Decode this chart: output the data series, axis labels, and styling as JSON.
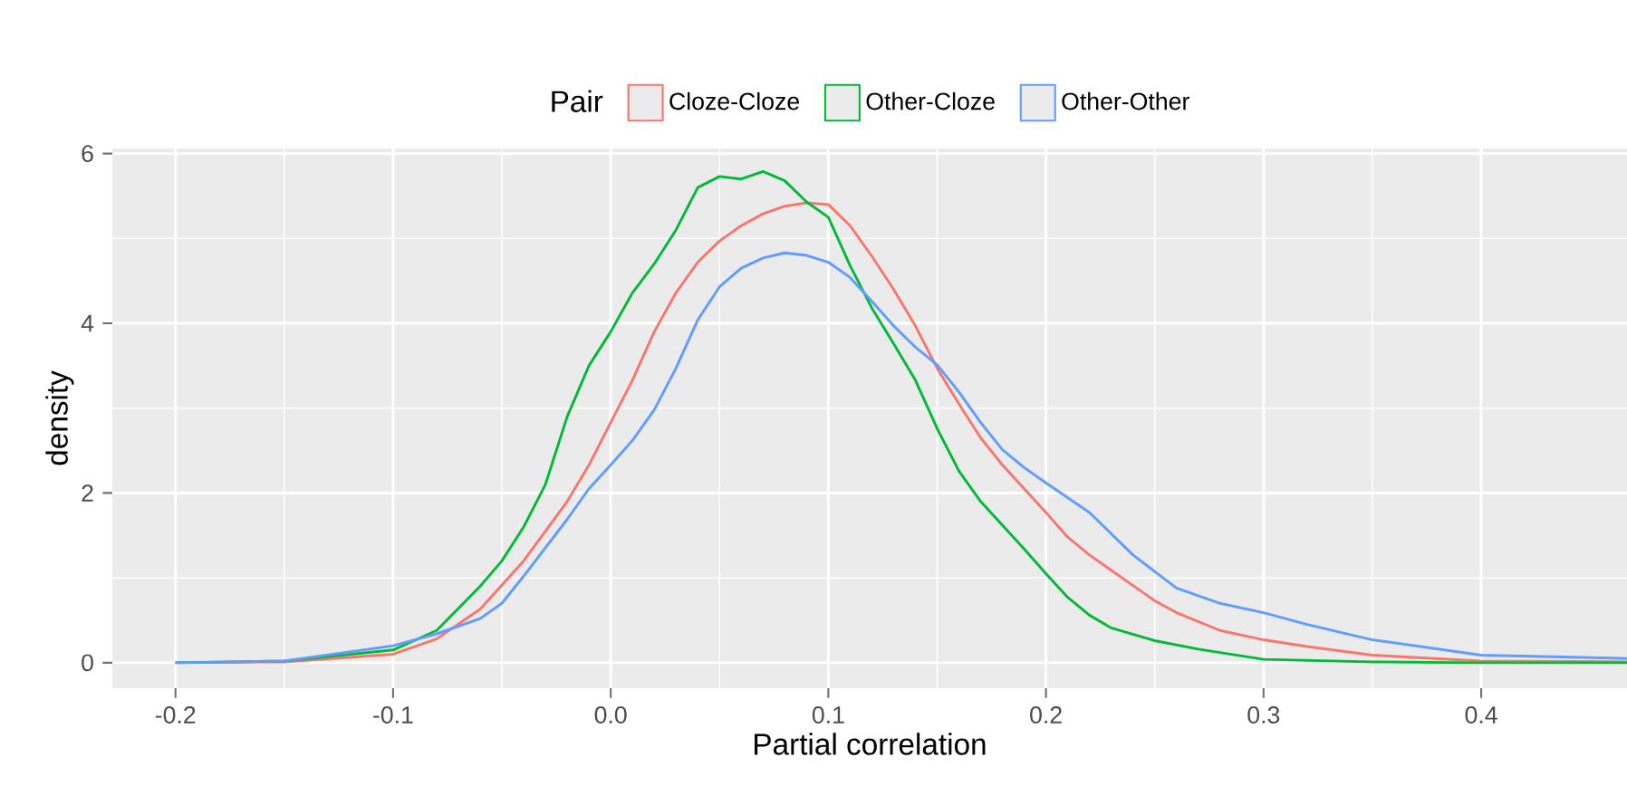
{
  "chart_data": {
    "type": "line",
    "xlabel": "Partial correlation",
    "ylabel": "density",
    "legend_title": "Pair",
    "legend": "top",
    "grid": true,
    "line_style": "solid",
    "marker": "none",
    "xlim": [
      -0.229,
      0.467
    ],
    "ylim": [
      -0.3,
      6.06
    ],
    "xticks": [
      -0.2,
      -0.1,
      {
        "value": 0.0,
        "label": "0.0"
      },
      0.1,
      0.2,
      0.3,
      0.4
    ],
    "yticks": [
      0,
      2,
      4,
      6
    ],
    "series": [
      {
        "name": "Cloze-Cloze",
        "color": "#f8766d",
        "x": [
          -0.2,
          -0.15,
          -0.1,
          -0.08,
          -0.06,
          -0.04,
          -0.02,
          -0.01,
          0,
          0.01,
          0.02,
          0.03,
          0.04,
          0.05,
          0.06,
          0.07,
          0.08,
          0.09,
          0.1,
          0.11,
          0.12,
          0.13,
          0.14,
          0.15,
          0.16,
          0.17,
          0.18,
          0.19,
          0.2,
          0.21,
          0.22,
          0.23,
          0.24,
          0.25,
          0.26,
          0.28,
          0.3,
          0.32,
          0.35,
          0.4,
          0.467
        ],
        "values": [
          0,
          0.01,
          0.1,
          0.28,
          0.63,
          1.2,
          1.9,
          2.33,
          2.83,
          3.33,
          3.9,
          4.36,
          4.72,
          4.97,
          5.15,
          5.29,
          5.38,
          5.42,
          5.4,
          5.15,
          4.79,
          4.4,
          3.97,
          3.47,
          3.05,
          2.65,
          2.33,
          2.05,
          1.77,
          1.48,
          1.27,
          1.09,
          0.91,
          0.73,
          0.59,
          0.38,
          0.27,
          0.19,
          0.09,
          0.02,
          0.01
        ]
      },
      {
        "name": "Other-Cloze",
        "color": "#00ba38",
        "x": [
          -0.2,
          -0.15,
          -0.1,
          -0.08,
          -0.06,
          -0.05,
          -0.04,
          -0.03,
          -0.02,
          -0.01,
          0,
          0.01,
          0.02,
          0.03,
          0.04,
          0.05,
          0.06,
          0.07,
          0.08,
          0.09,
          0.1,
          0.11,
          0.12,
          0.13,
          0.14,
          0.15,
          0.16,
          0.17,
          0.18,
          0.19,
          0.2,
          0.21,
          0.22,
          0.23,
          0.25,
          0.27,
          0.3,
          0.35,
          0.4,
          0.467
        ],
        "values": [
          0,
          0.02,
          0.15,
          0.38,
          0.9,
          1.2,
          1.6,
          2.1,
          2.9,
          3.5,
          3.9,
          4.36,
          4.7,
          5.1,
          5.6,
          5.73,
          5.7,
          5.79,
          5.68,
          5.43,
          5.25,
          4.68,
          4.18,
          3.76,
          3.33,
          2.76,
          2.26,
          1.9,
          1.62,
          1.34,
          1.05,
          0.77,
          0.56,
          0.41,
          0.26,
          0.16,
          0.04,
          0.01,
          0,
          0
        ]
      },
      {
        "name": "Other-Other",
        "color": "#619cff",
        "x": [
          -0.2,
          -0.15,
          -0.1,
          -0.08,
          -0.06,
          -0.05,
          -0.04,
          -0.02,
          -0.01,
          0,
          0.01,
          0.02,
          0.03,
          0.04,
          0.05,
          0.06,
          0.07,
          0.08,
          0.09,
          0.1,
          0.11,
          0.12,
          0.13,
          0.14,
          0.15,
          0.16,
          0.17,
          0.18,
          0.19,
          0.2,
          0.22,
          0.24,
          0.26,
          0.28,
          0.3,
          0.32,
          0.35,
          0.4,
          0.467
        ],
        "values": [
          0,
          0.02,
          0.2,
          0.34,
          0.52,
          0.7,
          1.02,
          1.69,
          2.05,
          2.33,
          2.62,
          2.98,
          3.47,
          4.04,
          4.43,
          4.65,
          4.77,
          4.83,
          4.8,
          4.72,
          4.54,
          4.26,
          3.97,
          3.72,
          3.51,
          3.19,
          2.83,
          2.51,
          2.3,
          2.12,
          1.77,
          1.27,
          0.88,
          0.7,
          0.59,
          0.45,
          0.27,
          0.09,
          0.05
        ]
      }
    ]
  }
}
